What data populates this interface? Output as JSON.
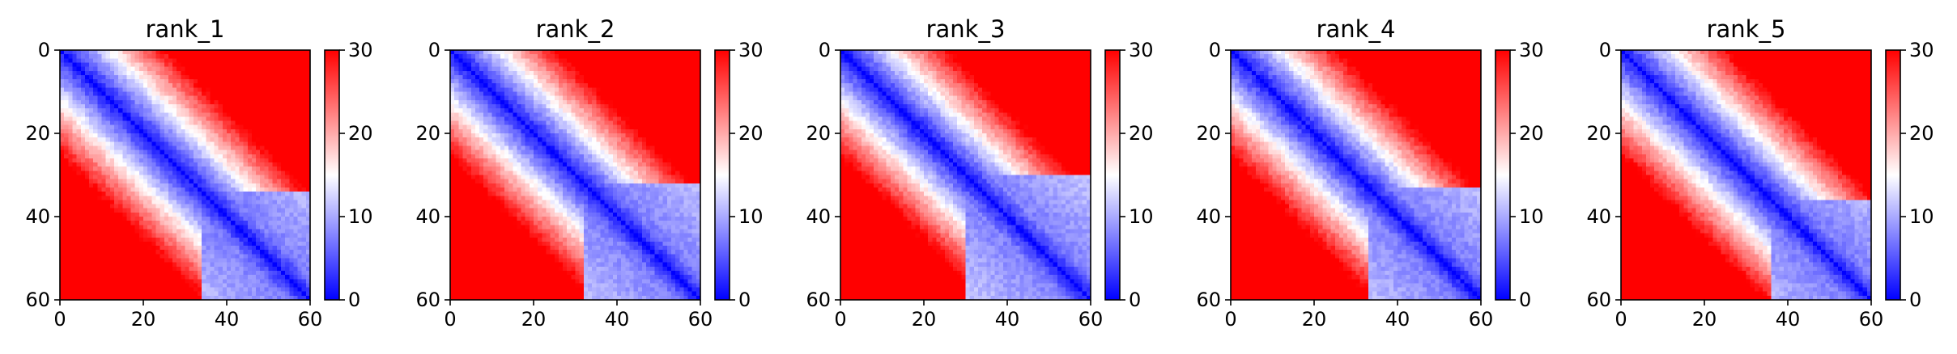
{
  "chart_data": [
    {
      "type": "heatmap",
      "title": "rank_1",
      "x_ticks": [
        0,
        20,
        40,
        60
      ],
      "y_ticks": [
        0,
        20,
        40,
        60
      ],
      "colorbar_ticks": [
        0,
        10,
        20,
        30
      ],
      "xlim": [
        0,
        60
      ],
      "ylim": [
        60,
        0
      ],
      "vmin": 0,
      "vmax": 30,
      "colormap": "bwr",
      "n": 60,
      "domain_start": 34
    },
    {
      "type": "heatmap",
      "title": "rank_2",
      "x_ticks": [
        0,
        20,
        40,
        60
      ],
      "y_ticks": [
        0,
        20,
        40,
        60
      ],
      "colorbar_ticks": [
        0,
        10,
        20,
        30
      ],
      "xlim": [
        0,
        60
      ],
      "ylim": [
        60,
        0
      ],
      "vmin": 0,
      "vmax": 30,
      "colormap": "bwr",
      "n": 60,
      "domain_start": 32
    },
    {
      "type": "heatmap",
      "title": "rank_3",
      "x_ticks": [
        0,
        20,
        40,
        60
      ],
      "y_ticks": [
        0,
        20,
        40,
        60
      ],
      "colorbar_ticks": [
        0,
        10,
        20,
        30
      ],
      "xlim": [
        0,
        60
      ],
      "ylim": [
        60,
        0
      ],
      "vmin": 0,
      "vmax": 30,
      "colormap": "bwr",
      "n": 60,
      "domain_start": 30
    },
    {
      "type": "heatmap",
      "title": "rank_4",
      "x_ticks": [
        0,
        20,
        40,
        60
      ],
      "y_ticks": [
        0,
        20,
        40,
        60
      ],
      "colorbar_ticks": [
        0,
        10,
        20,
        30
      ],
      "xlim": [
        0,
        60
      ],
      "ylim": [
        60,
        0
      ],
      "vmin": 0,
      "vmax": 30,
      "colormap": "bwr",
      "n": 60,
      "domain_start": 33
    },
    {
      "type": "heatmap",
      "title": "rank_5",
      "x_ticks": [
        0,
        20,
        40,
        60
      ],
      "y_ticks": [
        0,
        20,
        40,
        60
      ],
      "colorbar_ticks": [
        0,
        10,
        20,
        30
      ],
      "xlim": [
        0,
        60
      ],
      "ylim": [
        60,
        0
      ],
      "vmin": 0,
      "vmax": 30,
      "colormap": "bwr",
      "n": 60,
      "domain_start": 36
    }
  ],
  "colors": {
    "low": "#0000ff",
    "mid": "#ffffff",
    "high": "#ff0000"
  }
}
